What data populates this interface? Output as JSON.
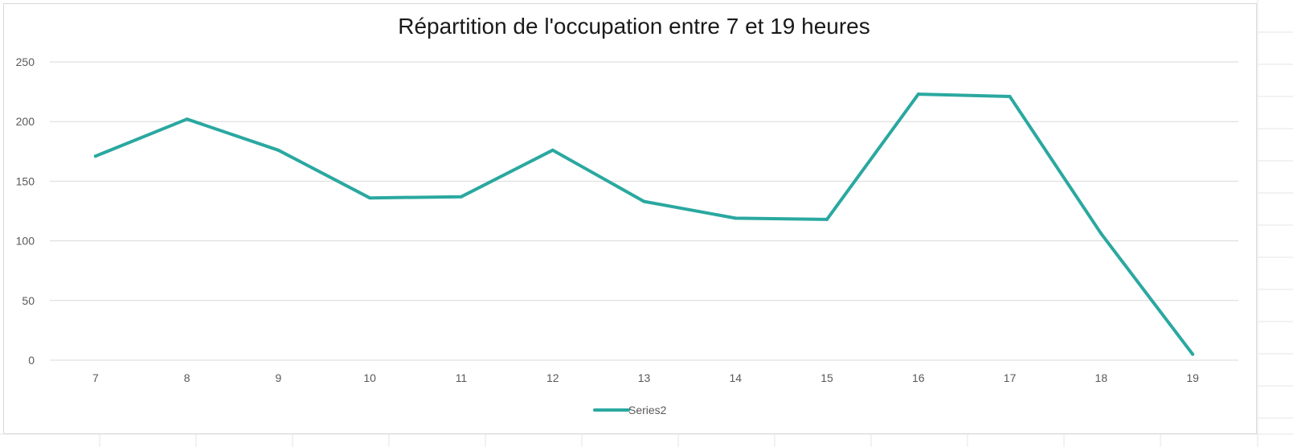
{
  "chart_data": {
    "type": "line",
    "title": "Répartition de l'occupation entre 7 et 19 heures",
    "xlabel": "",
    "ylabel": "",
    "categories": [
      "7",
      "8",
      "9",
      "10",
      "11",
      "12",
      "13",
      "14",
      "15",
      "16",
      "17",
      "18",
      "19"
    ],
    "series": [
      {
        "name": "Series2",
        "color": "#2aa8a0",
        "values": [
          171,
          202,
          176,
          136,
          137,
          176,
          133,
          119,
          118,
          223,
          221,
          106,
          5
        ]
      }
    ],
    "y_ticks": [
      "0",
      "50",
      "100",
      "150",
      "200",
      "250"
    ],
    "ylim": [
      0,
      250
    ],
    "grid": true,
    "legend_position": "bottom"
  }
}
